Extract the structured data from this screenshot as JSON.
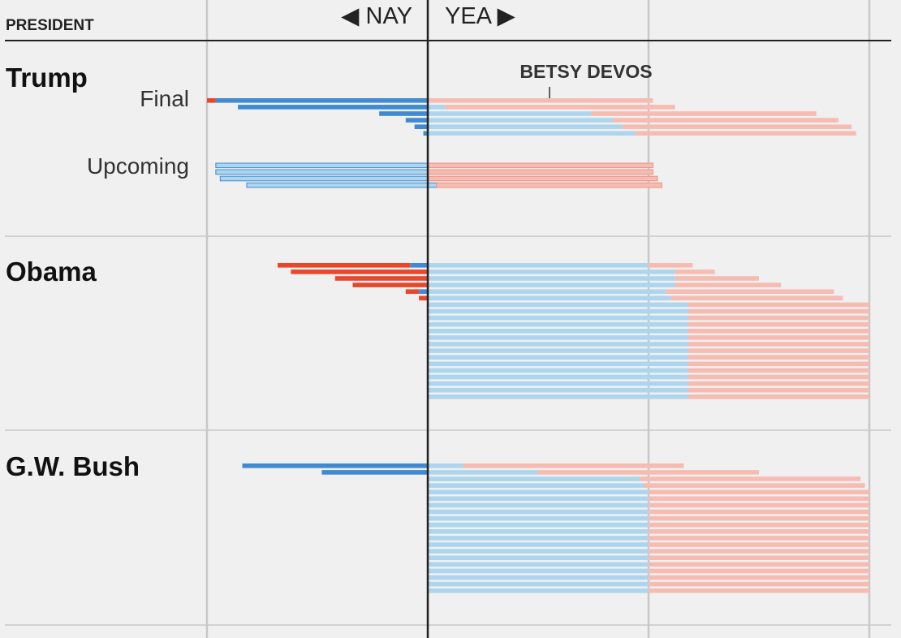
{
  "header": {
    "president_label": "PRESIDENT",
    "nay_label": "◀ NAY",
    "yea_label": "YEA ▶"
  },
  "colors": {
    "dem_solid": "#3f8ad0",
    "dem_light": "#add6ee",
    "rep_solid": "#e8472b",
    "rep_light": "#f6bcb2",
    "axis": "#222222",
    "grid": "#c8c8c8"
  },
  "chart_data": {
    "type": "bar",
    "orientation": "horizontal-diverging",
    "x_unit": "senators",
    "xlim": [
      -50,
      100
    ],
    "gridlines": [
      -50,
      0,
      50,
      100
    ],
    "annotations": [
      {
        "text": "BETSY DEVOS",
        "president": "Trump",
        "group": "Final",
        "row": 0
      }
    ],
    "panels": [
      {
        "president": "Trump",
        "groups": [
          {
            "label": "Final",
            "style": "solid",
            "rows": [
              {
                "nay_dem": 48,
                "nay_rep": 2,
                "yea_dem": 0,
                "yea_rep": 51
              },
              {
                "nay_dem": 43,
                "nay_rep": 0,
                "yea_dem": 4,
                "yea_rep": 52
              },
              {
                "nay_dem": 11,
                "nay_rep": 0,
                "yea_dem": 37,
                "yea_rep": 51
              },
              {
                "nay_dem": 5,
                "nay_rep": 0,
                "yea_dem": 42,
                "yea_rep": 51
              },
              {
                "nay_dem": 3,
                "nay_rep": 0,
                "yea_dem": 44,
                "yea_rep": 52
              },
              {
                "nay_dem": 1,
                "nay_rep": 0,
                "yea_dem": 47,
                "yea_rep": 50
              }
            ]
          },
          {
            "label": "Upcoming",
            "style": "outline",
            "rows": [
              {
                "nay_dem": 48,
                "nay_rep": 0,
                "yea_dem": 0,
                "yea_rep": 51
              },
              {
                "nay_dem": 48,
                "nay_rep": 0,
                "yea_dem": 0,
                "yea_rep": 51
              },
              {
                "nay_dem": 47,
                "nay_rep": 0,
                "yea_dem": 0,
                "yea_rep": 52
              },
              {
                "nay_dem": 41,
                "nay_rep": 0,
                "yea_dem": 2,
                "yea_rep": 51
              }
            ]
          }
        ]
      },
      {
        "president": "Obama",
        "groups": [
          {
            "label": "",
            "style": "solid",
            "rows": [
              {
                "nay_dem": 4,
                "nay_rep": 30,
                "yea_dem": 50,
                "yea_rep": 10
              },
              {
                "nay_dem": 0,
                "nay_rep": 31,
                "yea_dem": 56,
                "yea_rep": 9
              },
              {
                "nay_dem": 0,
                "nay_rep": 21,
                "yea_dem": 56,
                "yea_rep": 19
              },
              {
                "nay_dem": 0,
                "nay_rep": 17,
                "yea_dem": 56,
                "yea_rep": 24
              },
              {
                "nay_dem": 2,
                "nay_rep": 3,
                "yea_dem": 54,
                "yea_rep": 38
              },
              {
                "nay_dem": 0,
                "nay_rep": 2,
                "yea_dem": 55,
                "yea_rep": 39
              },
              {
                "nay_dem": 0,
                "nay_rep": 0,
                "yea_dem": 59,
                "yea_rep": 41
              },
              {
                "nay_dem": 0,
                "nay_rep": 0,
                "yea_dem": 59,
                "yea_rep": 41
              },
              {
                "nay_dem": 0,
                "nay_rep": 0,
                "yea_dem": 59,
                "yea_rep": 41
              },
              {
                "nay_dem": 0,
                "nay_rep": 0,
                "yea_dem": 59,
                "yea_rep": 41
              },
              {
                "nay_dem": 0,
                "nay_rep": 0,
                "yea_dem": 59,
                "yea_rep": 41
              },
              {
                "nay_dem": 0,
                "nay_rep": 0,
                "yea_dem": 59,
                "yea_rep": 41
              },
              {
                "nay_dem": 0,
                "nay_rep": 0,
                "yea_dem": 59,
                "yea_rep": 41
              },
              {
                "nay_dem": 0,
                "nay_rep": 0,
                "yea_dem": 59,
                "yea_rep": 41
              },
              {
                "nay_dem": 0,
                "nay_rep": 0,
                "yea_dem": 59,
                "yea_rep": 41
              },
              {
                "nay_dem": 0,
                "nay_rep": 0,
                "yea_dem": 59,
                "yea_rep": 41
              },
              {
                "nay_dem": 0,
                "nay_rep": 0,
                "yea_dem": 59,
                "yea_rep": 41
              },
              {
                "nay_dem": 0,
                "nay_rep": 0,
                "yea_dem": 59,
                "yea_rep": 41
              },
              {
                "nay_dem": 0,
                "nay_rep": 0,
                "yea_dem": 59,
                "yea_rep": 41
              },
              {
                "nay_dem": 0,
                "nay_rep": 0,
                "yea_dem": 59,
                "yea_rep": 41
              },
              {
                "nay_dem": 0,
                "nay_rep": 0,
                "yea_dem": 59,
                "yea_rep": 41
              }
            ]
          }
        ]
      },
      {
        "president": "G.W. Bush",
        "groups": [
          {
            "label": "",
            "style": "solid",
            "rows": [
              {
                "nay_dem": 42,
                "nay_rep": 0,
                "yea_dem": 8,
                "yea_rep": 50
              },
              {
                "nay_dem": 24,
                "nay_rep": 0,
                "yea_dem": 25,
                "yea_rep": 50
              },
              {
                "nay_dem": 0,
                "nay_rep": 0,
                "yea_dem": 48,
                "yea_rep": 50
              },
              {
                "nay_dem": 0,
                "nay_rep": 0,
                "yea_dem": 49,
                "yea_rep": 50
              },
              {
                "nay_dem": 0,
                "nay_rep": 0,
                "yea_dem": 50,
                "yea_rep": 50
              },
              {
                "nay_dem": 0,
                "nay_rep": 0,
                "yea_dem": 50,
                "yea_rep": 50
              },
              {
                "nay_dem": 0,
                "nay_rep": 0,
                "yea_dem": 50,
                "yea_rep": 50
              },
              {
                "nay_dem": 0,
                "nay_rep": 0,
                "yea_dem": 50,
                "yea_rep": 50
              },
              {
                "nay_dem": 0,
                "nay_rep": 0,
                "yea_dem": 50,
                "yea_rep": 50
              },
              {
                "nay_dem": 0,
                "nay_rep": 0,
                "yea_dem": 50,
                "yea_rep": 50
              },
              {
                "nay_dem": 0,
                "nay_rep": 0,
                "yea_dem": 50,
                "yea_rep": 50
              },
              {
                "nay_dem": 0,
                "nay_rep": 0,
                "yea_dem": 50,
                "yea_rep": 50
              },
              {
                "nay_dem": 0,
                "nay_rep": 0,
                "yea_dem": 50,
                "yea_rep": 50
              },
              {
                "nay_dem": 0,
                "nay_rep": 0,
                "yea_dem": 50,
                "yea_rep": 50
              },
              {
                "nay_dem": 0,
                "nay_rep": 0,
                "yea_dem": 50,
                "yea_rep": 50
              },
              {
                "nay_dem": 0,
                "nay_rep": 0,
                "yea_dem": 50,
                "yea_rep": 50
              },
              {
                "nay_dem": 0,
                "nay_rep": 0,
                "yea_dem": 50,
                "yea_rep": 50
              },
              {
                "nay_dem": 0,
                "nay_rep": 0,
                "yea_dem": 50,
                "yea_rep": 50
              },
              {
                "nay_dem": 0,
                "nay_rep": 0,
                "yea_dem": 50,
                "yea_rep": 50
              },
              {
                "nay_dem": 0,
                "nay_rep": 0,
                "yea_dem": 50,
                "yea_rep": 50
              }
            ]
          }
        ]
      }
    ]
  }
}
